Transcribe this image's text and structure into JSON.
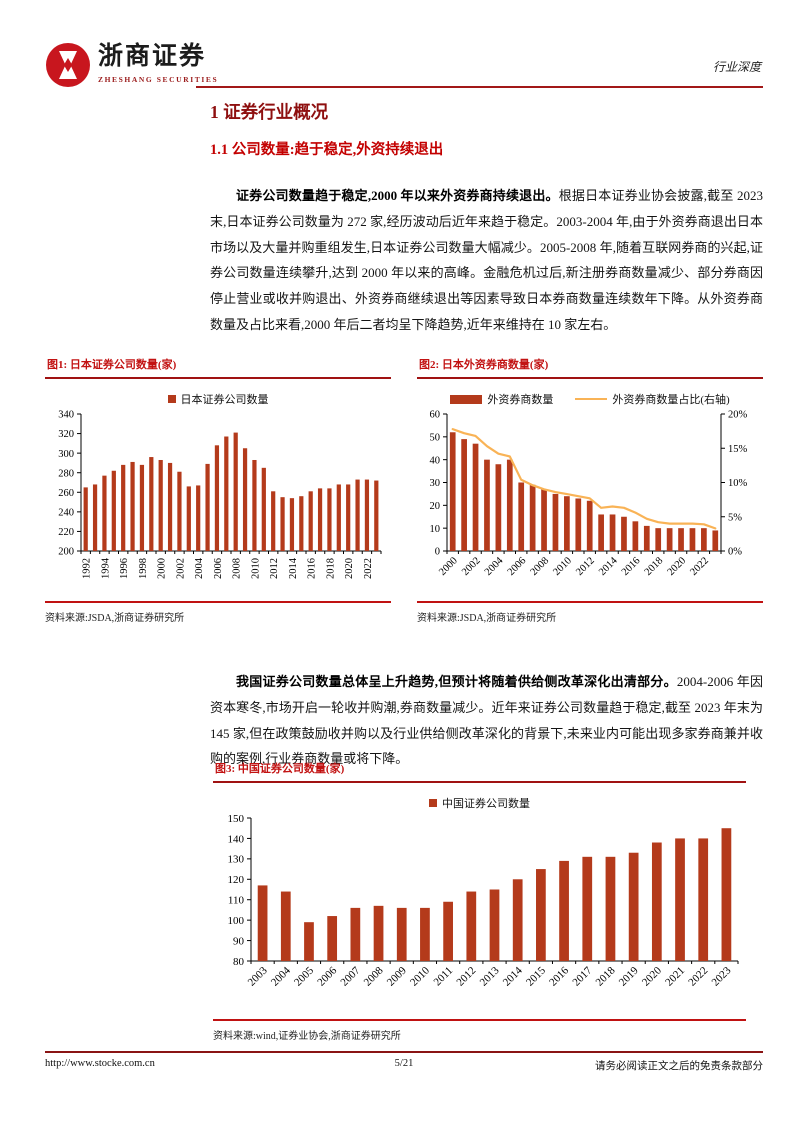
{
  "header": {
    "logo_cn": "浙商证券",
    "logo_en": "ZHESHANG SECURITIES",
    "doc_type": "行业深度"
  },
  "title": "1 证券行业概况",
  "section_heading": "1.1 公司数量:趋于稳定,外资持续退出",
  "paragraphs": {
    "p1_bold": "证券公司数量趋于稳定,2000 年以来外资券商持续退出。",
    "p1_rest": "根据日本证券业协会披露,截至 2023 末,日本证券公司数量为 272 家,经历波动后近年来趋于稳定。2003-2004 年,由于外资券商退出日本市场以及大量并购重组发生,日本证券公司数量大幅减少。2005-2008 年,随着互联网券商的兴起,证券公司数量连续攀升,达到 2000 年以来的高峰。金融危机过后,新注册券商数量减少、部分券商因停止营业或收并购退出、外资券商继续退出等因素导致日本券商数量连续数年下降。从外资券商数量及占比来看,2000 年后二者均呈下降趋势,近年来维持在 10 家左右。",
    "p2_bold": "我国证券公司数量总体呈上升趋势,但预计将随着供给侧改革深化出清部分。",
    "p2_rest": "2004-2006 年因资本寒冬,市场开启一轮收并购潮,券商数量减少。近年来证券公司数量趋于稳定,截至 2023 年末为 145 家,但在政策鼓励收并购以及行业供给侧改革深化的背景下,未来业内可能出现多家券商兼并收购的案例,行业券商数量或将下降。"
  },
  "figures": [
    {
      "caption": "图1:  日本证券公司数量(家)",
      "source": "资料来源:JSDA,浙商证券研究所"
    },
    {
      "caption": "图2:  日本外资券商数量(家)",
      "source": "资料来源:JSDA,浙商证券研究所"
    },
    {
      "caption": "图3:  中国证券公司数量(家)",
      "source": "资料来源:wind,证券业协会,浙商证券研究所"
    }
  ],
  "chart_data": [
    {
      "type": "bar",
      "title": "日本证券公司数量(家)",
      "legend": [
        "日本证券公司数量"
      ],
      "x": [
        "1992",
        "1993",
        "1994",
        "1995",
        "1996",
        "1997",
        "1998",
        "1999",
        "2000",
        "2001",
        "2002",
        "2003",
        "2004",
        "2005",
        "2006",
        "2007",
        "2008",
        "2009",
        "2010",
        "2011",
        "2012",
        "2013",
        "2014",
        "2015",
        "2016",
        "2017",
        "2018",
        "2019",
        "2020",
        "2021",
        "2022",
        "2023"
      ],
      "values": [
        265,
        268,
        277,
        282,
        288,
        291,
        288,
        296,
        293,
        290,
        281,
        266,
        267,
        289,
        308,
        317,
        321,
        305,
        293,
        285,
        261,
        255,
        254,
        256,
        261,
        264,
        264,
        268,
        268,
        273,
        273,
        272
      ],
      "ylim": [
        200,
        340
      ],
      "ystep": 20,
      "xlabel_every": 2,
      "xlabel_rotate": 90,
      "grid": false,
      "legend_position": "top"
    },
    {
      "type": "bar+line",
      "title": "日本外资券商数量(家)",
      "legend": [
        "外资券商数量",
        "外资券商数量占比(右轴)"
      ],
      "x": [
        "2000",
        "2001",
        "2002",
        "2003",
        "2004",
        "2005",
        "2006",
        "2007",
        "2008",
        "2009",
        "2010",
        "2011",
        "2012",
        "2013",
        "2014",
        "2015",
        "2016",
        "2017",
        "2018",
        "2019",
        "2020",
        "2021",
        "2022",
        "2023"
      ],
      "series": [
        {
          "name": "外资券商数量",
          "type": "bar",
          "axis": "left",
          "values": [
            52,
            49,
            47,
            40,
            38,
            40,
            30,
            29,
            27,
            25,
            24,
            23,
            22,
            16,
            16,
            15,
            13,
            11,
            10,
            10,
            10,
            10,
            10,
            9
          ]
        },
        {
          "name": "外资券商数量占比(右轴)",
          "type": "line",
          "axis": "right",
          "values": [
            17.8,
            17.2,
            16.8,
            15.3,
            14.2,
            13.8,
            10.4,
            9.6,
            9.0,
            8.6,
            8.3,
            8.0,
            7.7,
            6.3,
            6.5,
            6.3,
            5.6,
            4.7,
            4.2,
            4.0,
            4.0,
            4.0,
            3.9,
            3.3
          ]
        }
      ],
      "ylim": [
        0,
        60
      ],
      "ystep": 10,
      "y2lim": [
        0,
        20
      ],
      "y2step": 5,
      "y2suffix": "%",
      "xlabel_every": 2,
      "xlabel_rotate": 45,
      "grid": false,
      "legend_position": "top"
    },
    {
      "type": "bar",
      "title": "中国证券公司数量(家)",
      "legend": [
        "中国证券公司数量"
      ],
      "x": [
        "2003",
        "2004",
        "2005",
        "2006",
        "2007",
        "2008",
        "2009",
        "2010",
        "2011",
        "2012",
        "2013",
        "2014",
        "2015",
        "2016",
        "2017",
        "2018",
        "2019",
        "2020",
        "2021",
        "2022",
        "2023"
      ],
      "values": [
        117,
        114,
        99,
        102,
        106,
        107,
        106,
        106,
        109,
        114,
        115,
        120,
        125,
        129,
        131,
        131,
        133,
        138,
        140,
        140,
        145
      ],
      "ylim": [
        80,
        150
      ],
      "ystep": 10,
      "xlabel_every": 1,
      "xlabel_rotate": 45,
      "grid": false,
      "legend_position": "top"
    }
  ],
  "footer": {
    "url": "http://www.stocke.com.cn",
    "page": "5/21",
    "disclaimer": "请务必阅读正文之后的免责条款部分"
  },
  "colors": {
    "bar": "#b43a1b",
    "line": "#f9b356",
    "caption_red": "#c21212",
    "title_red": "#8e0f0f",
    "subtitle_red": "#c30000",
    "rule_red": "#a21818",
    "logo_red": "#c8161e"
  }
}
